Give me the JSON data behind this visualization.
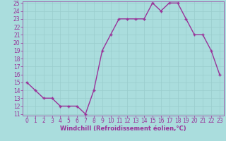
{
  "x": [
    0,
    1,
    2,
    3,
    4,
    5,
    6,
    7,
    8,
    9,
    10,
    11,
    12,
    13,
    14,
    15,
    16,
    17,
    18,
    19,
    20,
    21,
    22,
    23
  ],
  "y": [
    15,
    14,
    13,
    13,
    12,
    12,
    12,
    11,
    14,
    19,
    21,
    23,
    23,
    23,
    23,
    25,
    24,
    25,
    25,
    23,
    21,
    21,
    19,
    16
  ],
  "line_color": "#993399",
  "marker": "+",
  "bg_color": "#aadddd",
  "grid_color": "#99cccc",
  "xlabel": "Windchill (Refroidissement éolien,°C)",
  "ylim": [
    11,
    25
  ],
  "xlim": [
    -0.5,
    23.5
  ],
  "yticks": [
    11,
    12,
    13,
    14,
    15,
    16,
    17,
    18,
    19,
    20,
    21,
    22,
    23,
    24,
    25
  ],
  "xticks": [
    0,
    1,
    2,
    3,
    4,
    5,
    6,
    7,
    8,
    9,
    10,
    11,
    12,
    13,
    14,
    15,
    16,
    17,
    18,
    19,
    20,
    21,
    22,
    23
  ],
  "tick_color": "#993399",
  "label_color": "#993399",
  "tick_labelsize": 5.5,
  "xlabel_fontsize": 6.0,
  "linewidth": 1.0,
  "markersize": 3.5,
  "markeredgewidth": 1.0
}
